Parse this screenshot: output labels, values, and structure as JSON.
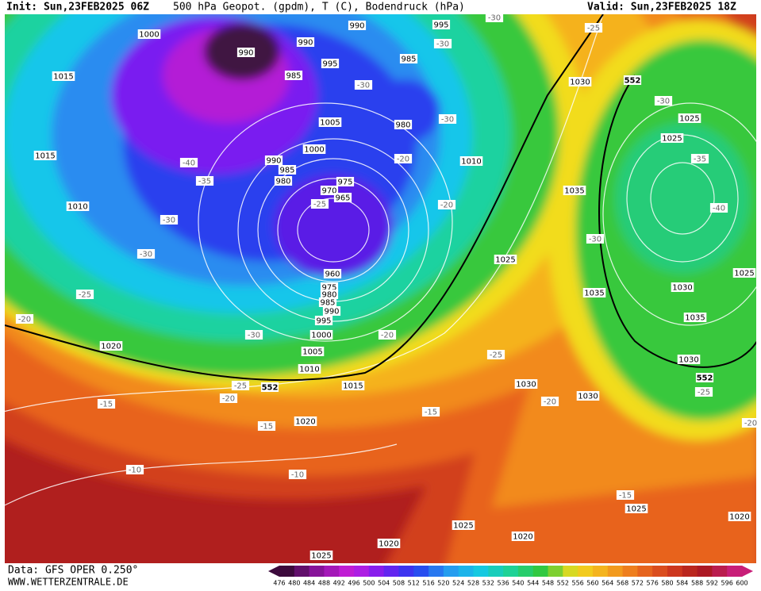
{
  "header": {
    "init": "Init: Sun,23FEB2025 06Z",
    "title": "500 hPa Geopot. (gpdm), T (C), Bodendruck (hPa)",
    "valid": "Valid: Sun,23FEB2025 18Z"
  },
  "map": {
    "isobars": [
      1000,
      990,
      995,
      990,
      990,
      985,
      995,
      1015,
      985,
      1030,
      980,
      1005,
      1025,
      1025,
      1000,
      1015,
      990,
      985,
      1010,
      980,
      975,
      970,
      965,
      1035,
      1010,
      1025,
      1025,
      960,
      975,
      980,
      985,
      990,
      995,
      1030,
      1035,
      1000,
      1035,
      1020,
      1005,
      1030,
      1010,
      1015,
      1030,
      1030,
      1020,
      1025,
      1020,
      1025,
      1020,
      1020,
      1025
    ],
    "temperatures": [
      -30,
      -25,
      -30,
      -30,
      -30,
      -30,
      -20,
      -35,
      -40,
      -35,
      -25,
      -20,
      -40,
      -30,
      -30,
      -30,
      -25,
      -20,
      -30,
      -20,
      -25,
      -25,
      -25,
      -20,
      -15,
      -20,
      -15,
      -15,
      -20,
      -10,
      -10,
      -15
    ],
    "geopotential": [
      552,
      552,
      552
    ]
  },
  "colorbar": {
    "labels": [
      476,
      480,
      484,
      488,
      492,
      496,
      500,
      504,
      508,
      512,
      516,
      520,
      524,
      528,
      532,
      536,
      540,
      544,
      548,
      552,
      556,
      560,
      564,
      568,
      572,
      576,
      580,
      584,
      588,
      592,
      596,
      600
    ]
  },
  "footer": {
    "data": "Data: GFS OPER 0.250°",
    "site": "WWW.WETTERZENTRALE.DE"
  }
}
